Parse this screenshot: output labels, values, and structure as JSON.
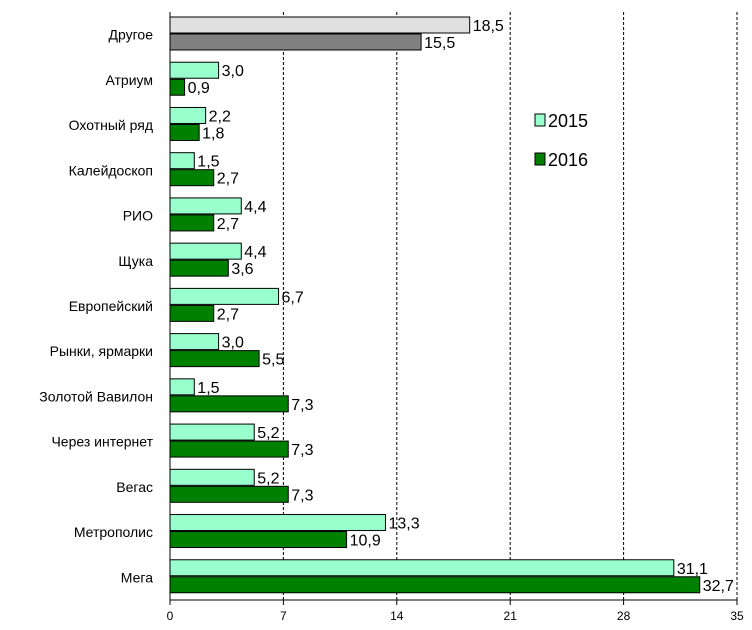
{
  "chart_data": {
    "type": "bar",
    "orientation": "horizontal",
    "categories": [
      "Другое",
      "Атриум",
      "Охотный ряд",
      "Калейдоскоп",
      "РИО",
      "Щука",
      "Европейский",
      "Рынки, ярмарки",
      "Золотой Вавилон",
      "Через интернет",
      "Вегас",
      "Метрополис",
      "Мега"
    ],
    "series": [
      {
        "name": "2015",
        "values": [
          18.5,
          3.0,
          2.2,
          1.5,
          4.4,
          4.4,
          6.7,
          3.0,
          1.5,
          5.2,
          5.2,
          13.3,
          31.1
        ],
        "labels": [
          "18,5",
          "3,0",
          "2,2",
          "1,5",
          "4,4",
          "4,4",
          "6,7",
          "3,0",
          "1,5",
          "5,2",
          "5,2",
          "13,3",
          "31,1"
        ],
        "color": "#99ffcc",
        "first_category_color": "#e0e0e0"
      },
      {
        "name": "2016",
        "values": [
          15.5,
          0.9,
          1.8,
          2.7,
          2.7,
          3.6,
          2.7,
          5.5,
          7.3,
          7.3,
          7.3,
          10.9,
          32.7
        ],
        "labels": [
          "15,5",
          "0,9",
          "1,8",
          "2,7",
          "2,7",
          "3,6",
          "2,7",
          "5,5",
          "7,3",
          "7,3",
          "7,3",
          "10,9",
          "32,7"
        ],
        "color": "#008000",
        "first_category_color": "#808080"
      }
    ],
    "xticks": [
      0,
      7,
      14,
      21,
      28,
      35
    ],
    "xlim": [
      0,
      35
    ],
    "grid": "vertical dashed",
    "legend": "right"
  }
}
